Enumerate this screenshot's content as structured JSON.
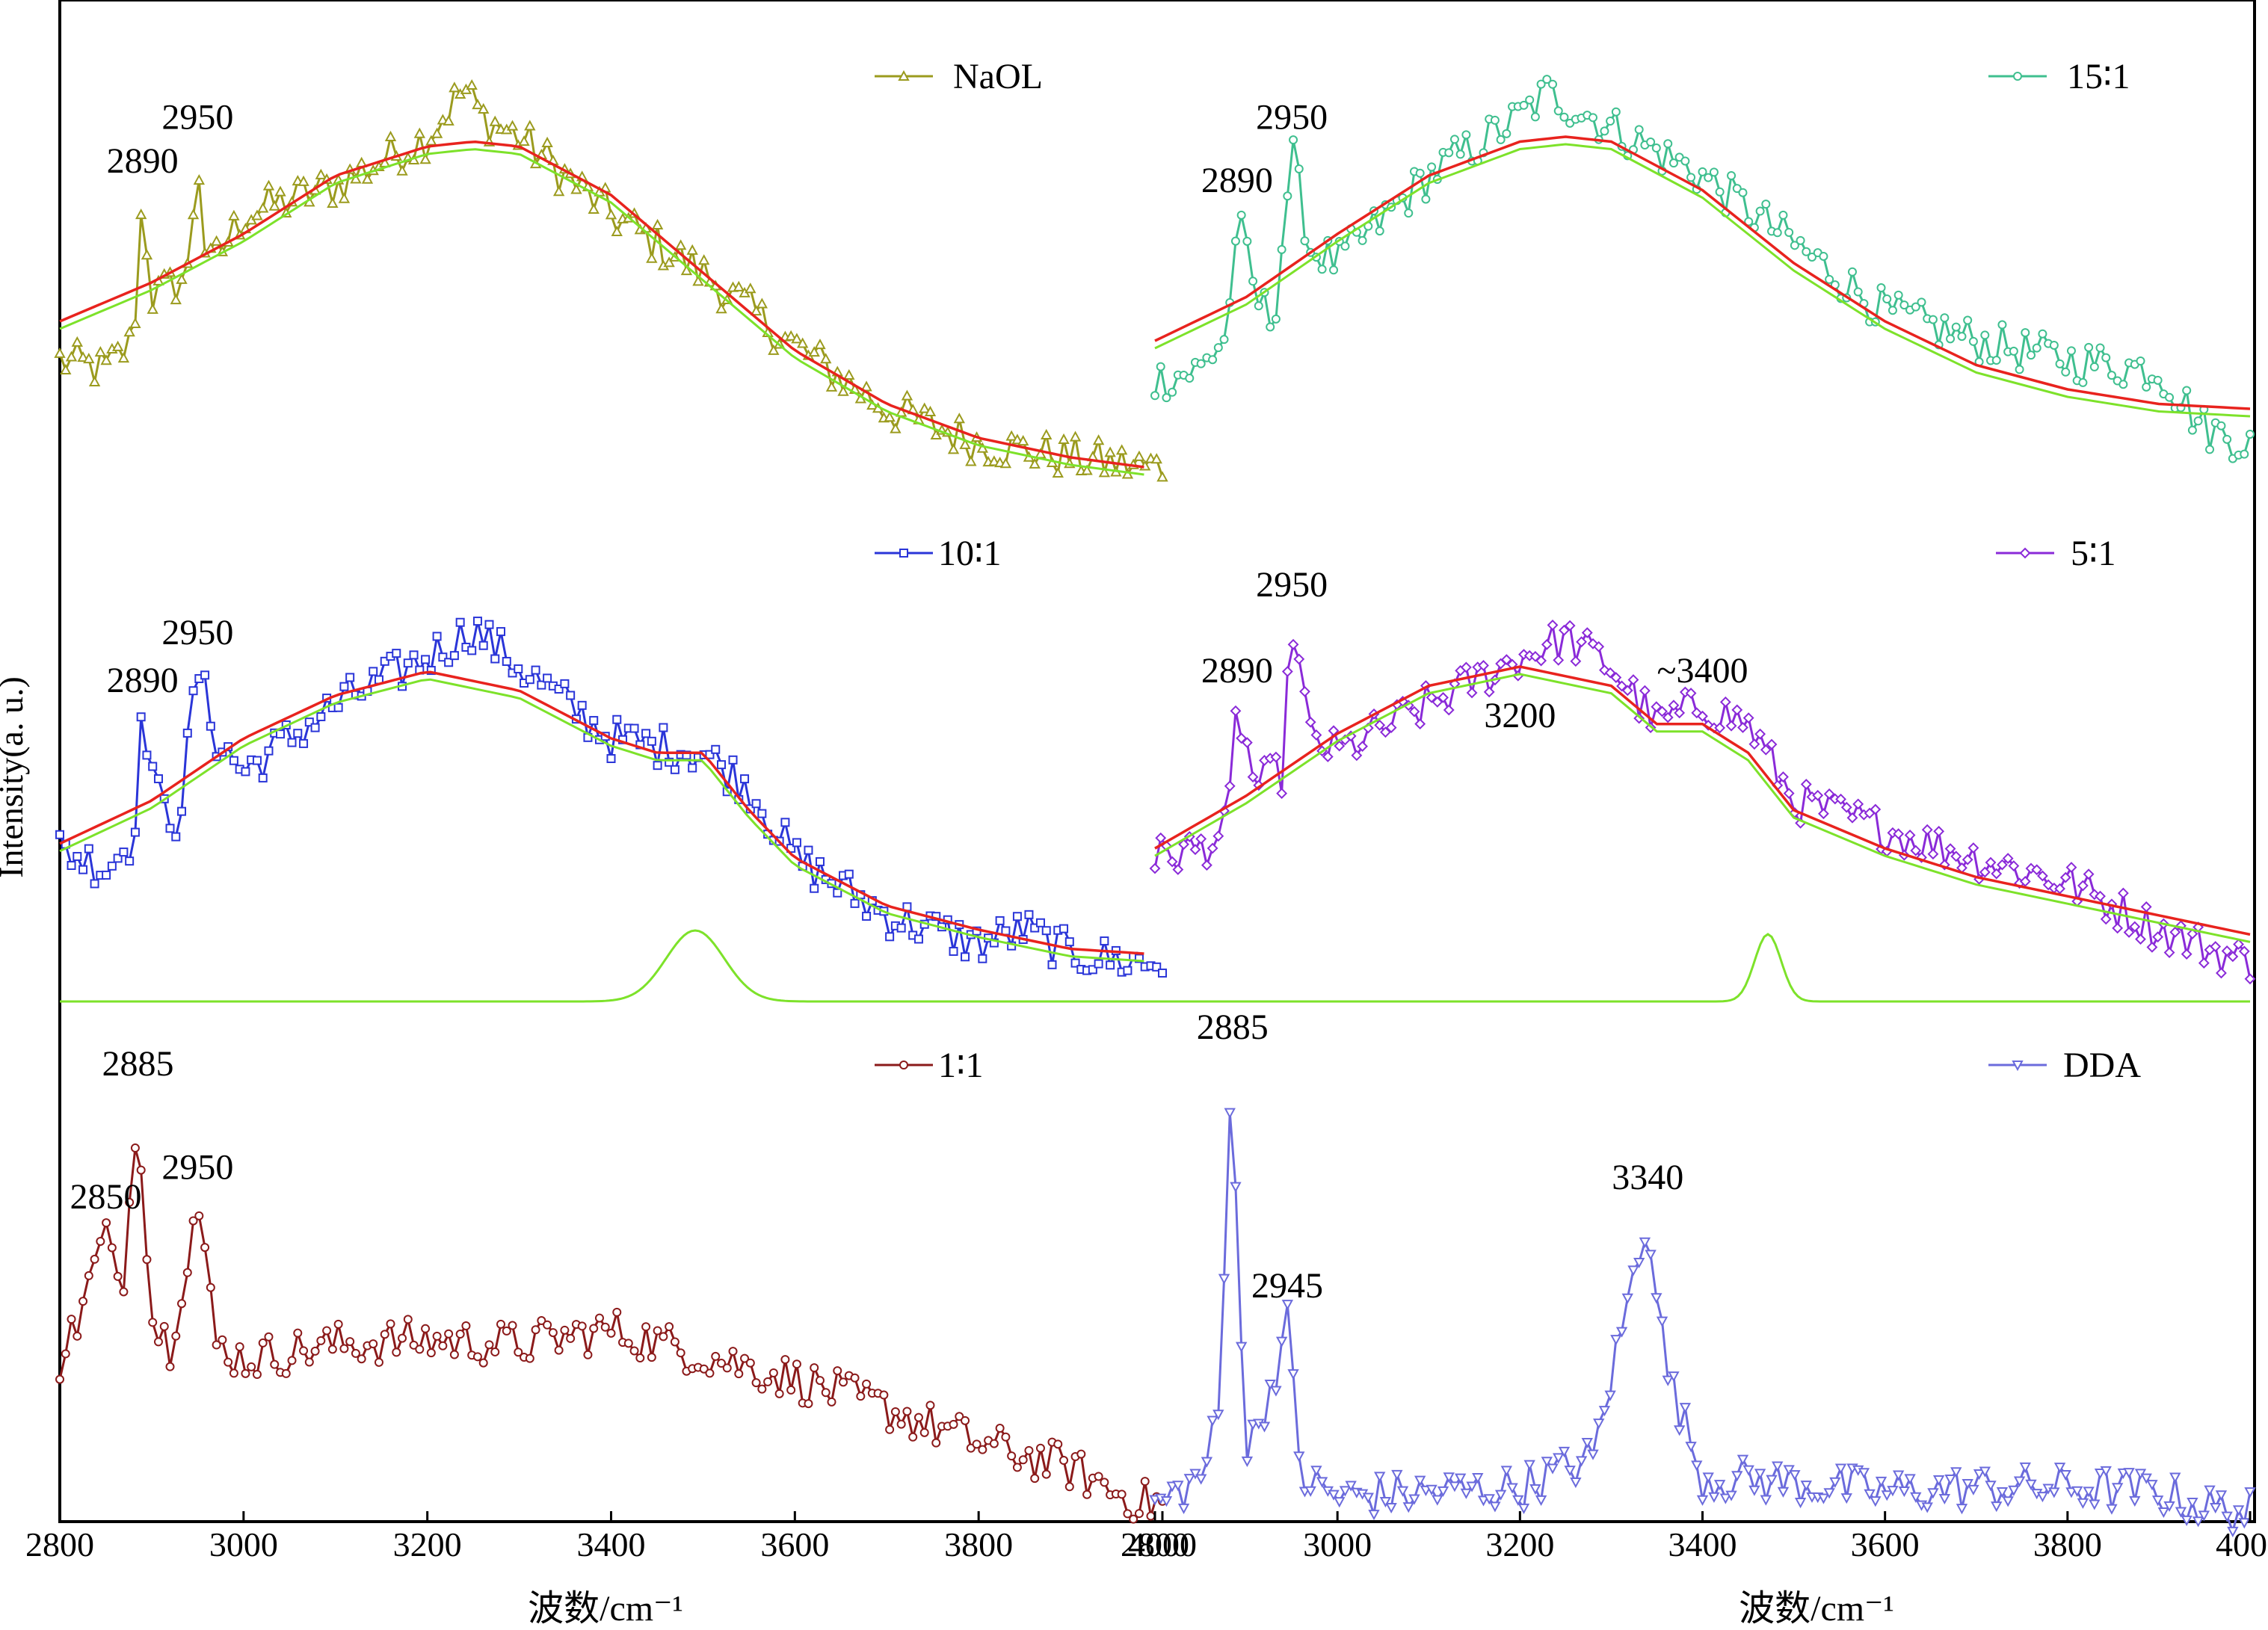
{
  "figure": {
    "ylabel": "Intensity(a. u.)",
    "xlabel": "波数/cm⁻¹"
  },
  "chart_data": [
    {
      "type": "line",
      "panel": "top-left",
      "legend": "NaOL",
      "xlim": [
        2800,
        4000
      ],
      "ylim": [
        0.0,
        1.0
      ],
      "raw": {
        "x": [
          2800,
          2850,
          2880,
          2890,
          2900,
          2920,
          2940,
          2950,
          2960,
          3000,
          3100,
          3200,
          3240,
          3260,
          3300,
          3400,
          3500,
          3600,
          3700,
          3800,
          3900,
          3980
        ],
        "y": [
          0.32,
          0.3,
          0.36,
          0.66,
          0.45,
          0.47,
          0.5,
          0.75,
          0.5,
          0.62,
          0.68,
          0.78,
          0.88,
          0.82,
          0.78,
          0.62,
          0.5,
          0.35,
          0.22,
          0.15,
          0.12,
          0.1
        ]
      },
      "fit": {
        "x": [
          2800,
          2900,
          3000,
          3100,
          3200,
          3250,
          3300,
          3400,
          3500,
          3600,
          3700,
          3800,
          3900,
          3980
        ],
        "y": [
          0.4,
          0.48,
          0.58,
          0.7,
          0.76,
          0.77,
          0.76,
          0.66,
          0.5,
          0.34,
          0.23,
          0.16,
          0.12,
          0.1
        ]
      },
      "annotations": [
        {
          "text": "2890",
          "x": 2890
        },
        {
          "text": "2950",
          "x": 2950
        }
      ]
    },
    {
      "type": "line",
      "panel": "top-right",
      "legend": "15∶1",
      "xlim": [
        2800,
        4000
      ],
      "ylim": [
        0.0,
        1.0
      ],
      "raw": {
        "x": [
          2800,
          2850,
          2880,
          2890,
          2910,
          2930,
          2950,
          2970,
          3000,
          3100,
          3200,
          3230,
          3300,
          3400,
          3500,
          3600,
          3700,
          3800,
          3900,
          3950,
          4000
        ],
        "y": [
          0.28,
          0.3,
          0.38,
          0.62,
          0.45,
          0.4,
          0.75,
          0.55,
          0.52,
          0.7,
          0.82,
          0.87,
          0.8,
          0.7,
          0.56,
          0.42,
          0.36,
          0.32,
          0.3,
          0.18,
          0.15
        ]
      },
      "fit": {
        "x": [
          2800,
          2900,
          3000,
          3100,
          3200,
          3250,
          3300,
          3400,
          3500,
          3600,
          3700,
          3800,
          3900,
          4000
        ],
        "y": [
          0.36,
          0.45,
          0.58,
          0.7,
          0.77,
          0.78,
          0.77,
          0.67,
          0.52,
          0.4,
          0.31,
          0.26,
          0.23,
          0.22
        ]
      },
      "annotations": [
        {
          "text": "2890",
          "x": 2890
        },
        {
          "text": "2950",
          "x": 2950
        }
      ]
    },
    {
      "type": "line",
      "panel": "middle-left",
      "legend": "10∶1",
      "xlim": [
        2800,
        4000
      ],
      "ylim": [
        0.0,
        1.0
      ],
      "raw": {
        "x": [
          2800,
          2850,
          2880,
          2890,
          2910,
          2930,
          2950,
          2970,
          3000,
          3100,
          3200,
          3250,
          3300,
          3400,
          3500,
          3550,
          3600,
          3700,
          3800,
          3850,
          3900,
          3980
        ],
        "y": [
          0.32,
          0.28,
          0.34,
          0.6,
          0.4,
          0.38,
          0.7,
          0.55,
          0.48,
          0.62,
          0.72,
          0.78,
          0.7,
          0.55,
          0.52,
          0.45,
          0.3,
          0.18,
          0.12,
          0.15,
          0.1,
          0.08
        ]
      },
      "fit": {
        "x": [
          2800,
          2900,
          3000,
          3100,
          3200,
          3300,
          3400,
          3450,
          3500,
          3550,
          3600,
          3700,
          3800,
          3900,
          3980
        ],
        "y": [
          0.33,
          0.42,
          0.55,
          0.64,
          0.69,
          0.65,
          0.55,
          0.52,
          0.52,
          0.4,
          0.3,
          0.2,
          0.15,
          0.11,
          0.1
        ]
      },
      "annotations": [
        {
          "text": "2890",
          "x": 2890
        },
        {
          "text": "2950",
          "x": 2950
        }
      ]
    },
    {
      "type": "line",
      "panel": "middle-right",
      "legend": "5∶1",
      "xlim": [
        2800,
        4000
      ],
      "ylim": [
        0.0,
        1.0
      ],
      "raw": {
        "x": [
          2800,
          2850,
          2880,
          2890,
          2910,
          2940,
          2950,
          2970,
          3000,
          3100,
          3200,
          3250,
          3300,
          3350,
          3400,
          3450,
          3500,
          3600,
          3700,
          3800,
          3900,
          4000
        ],
        "y": [
          0.3,
          0.32,
          0.36,
          0.62,
          0.45,
          0.48,
          0.8,
          0.55,
          0.52,
          0.62,
          0.72,
          0.76,
          0.7,
          0.58,
          0.62,
          0.58,
          0.42,
          0.36,
          0.3,
          0.25,
          0.15,
          0.08
        ]
      },
      "fit": {
        "x": [
          2800,
          2900,
          3000,
          3100,
          3200,
          3300,
          3350,
          3400,
          3450,
          3500,
          3600,
          3700,
          3800,
          3900,
          4000
        ],
        "y": [
          0.32,
          0.43,
          0.56,
          0.66,
          0.7,
          0.66,
          0.58,
          0.58,
          0.52,
          0.4,
          0.32,
          0.26,
          0.22,
          0.18,
          0.14
        ]
      },
      "annotations": [
        {
          "text": "2890",
          "x": 2890
        },
        {
          "text": "2950",
          "x": 2950
        },
        {
          "text": "3200",
          "x": 3200
        },
        {
          "text": "~3400",
          "x": 3400
        }
      ]
    },
    {
      "type": "line",
      "panel": "bottom-left",
      "legend": "1∶1",
      "xlim": [
        2800,
        4000
      ],
      "ylim": [
        0.0,
        1.0
      ],
      "raw": {
        "x": [
          2800,
          2820,
          2850,
          2860,
          2870,
          2885,
          2900,
          2920,
          2950,
          2970,
          3000,
          3100,
          3200,
          3300,
          3400,
          3500,
          3600,
          3700,
          3800,
          3900,
          3950,
          3980
        ],
        "y": [
          0.32,
          0.4,
          0.58,
          0.48,
          0.5,
          0.85,
          0.4,
          0.35,
          0.64,
          0.35,
          0.32,
          0.35,
          0.36,
          0.35,
          0.38,
          0.33,
          0.28,
          0.22,
          0.15,
          0.1,
          0.05,
          0.03
        ]
      },
      "annotations": [
        {
          "text": "2850",
          "x": 2850
        },
        {
          "text": "2885",
          "x": 2885
        },
        {
          "text": "2950",
          "x": 2950
        }
      ]
    },
    {
      "type": "line",
      "panel": "bottom-right",
      "legend": "DDA",
      "xlim": [
        2800,
        4000
      ],
      "ylim": [
        0.0,
        1.0
      ],
      "raw": {
        "x": [
          2800,
          2850,
          2870,
          2880,
          2885,
          2890,
          2900,
          2930,
          2945,
          2960,
          3000,
          3100,
          3200,
          3280,
          3320,
          3340,
          3360,
          3400,
          3500,
          3600,
          3700,
          3800,
          3900,
          3950,
          4000
        ],
        "y": [
          0.02,
          0.08,
          0.2,
          0.7,
          0.95,
          0.6,
          0.12,
          0.28,
          0.4,
          0.08,
          0.04,
          0.05,
          0.06,
          0.12,
          0.45,
          0.62,
          0.3,
          0.08,
          0.07,
          0.05,
          0.06,
          0.06,
          0.05,
          0.02,
          0.01
        ]
      },
      "annotations": [
        {
          "text": "2885",
          "x": 2885
        },
        {
          "text": "2945",
          "x": 2945
        },
        {
          "text": "3340",
          "x": 3340
        }
      ]
    }
  ],
  "ticks": [
    "2800",
    "3000",
    "3200",
    "3400",
    "3600",
    "3800",
    "4000"
  ],
  "colors": {
    "NaOL": "#9b9b1e",
    "15∶1": "#3fbf8f",
    "10∶1": "#2a35d8",
    "5∶1": "#8a2ad8",
    "1∶1": "#8b1a1a",
    "DDA": "#6b6bdc",
    "fit_red": "#e8231e",
    "fit_green": "#7de22a",
    "axis": "#000000"
  }
}
